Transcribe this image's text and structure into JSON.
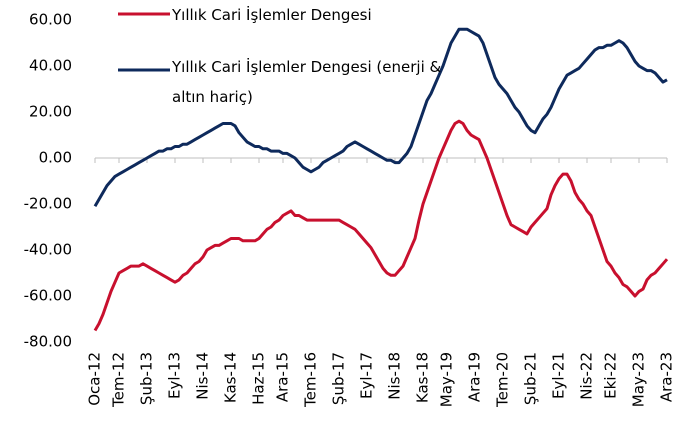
{
  "chart_data": {
    "type": "line",
    "categories": [
      "Oca-12",
      null,
      null,
      null,
      null,
      null,
      "Tem-12",
      null,
      null,
      null,
      null,
      null,
      null,
      "Şub-13",
      null,
      null,
      null,
      null,
      null,
      null,
      "Eyl-13",
      null,
      null,
      null,
      null,
      null,
      null,
      "Nis-14",
      null,
      null,
      null,
      null,
      null,
      null,
      "Kas-14",
      null,
      null,
      null,
      null,
      null,
      null,
      "Haz-15",
      null,
      null,
      null,
      null,
      null,
      "Ara-15",
      null,
      null,
      null,
      null,
      null,
      null,
      "Tem-16",
      null,
      null,
      null,
      null,
      null,
      null,
      "Şub-17",
      null,
      null,
      null,
      null,
      null,
      null,
      "Eyl-17",
      null,
      null,
      null,
      null,
      null,
      null,
      "Nis-18",
      null,
      null,
      null,
      null,
      null,
      null,
      "Kas-18",
      null,
      null,
      null,
      null,
      null,
      "May-19",
      null,
      null,
      null,
      null,
      null,
      null,
      "Ara-19",
      null,
      null,
      null,
      null,
      null,
      null,
      "Tem-20",
      null,
      null,
      null,
      null,
      null,
      null,
      "Şub-21",
      null,
      null,
      null,
      null,
      null,
      null,
      "Eyl-21",
      null,
      null,
      null,
      null,
      null,
      null,
      "Nis-22",
      null,
      null,
      null,
      null,
      null,
      "Eki-22",
      null,
      null,
      null,
      null,
      null,
      null,
      "May-23",
      null,
      null,
      null,
      null,
      null,
      null,
      "Ara-23"
    ],
    "series": [
      {
        "name": "Yıllık Cari İşlemler Dengesi",
        "color": "#c8102e",
        "values": [
          -75,
          -72,
          -68,
          -63,
          -58,
          -54,
          -50,
          -49,
          -48,
          -47,
          -47,
          -47,
          -46,
          -47,
          -48,
          -49,
          -50,
          -51,
          -52,
          -53,
          -54,
          -53,
          -51,
          -50,
          -48,
          -46,
          -45,
          -43,
          -40,
          -39,
          -38,
          -38,
          -37,
          -36,
          -35,
          -35,
          -35,
          -36,
          -36,
          -36,
          -36,
          -35,
          -33,
          -31,
          -30,
          -28,
          -27,
          -25,
          -24,
          -23,
          -25,
          -25,
          -26,
          -27,
          -27,
          -27,
          -27,
          -27,
          -27,
          -27,
          -27,
          -27,
          -28,
          -29,
          -30,
          -31,
          -33,
          -35,
          -37,
          -39,
          -42,
          -45,
          -48,
          -50,
          -51,
          -51,
          -49,
          -47,
          -43,
          -39,
          -35,
          -27,
          -20,
          -15,
          -10,
          -5,
          0,
          4,
          8,
          12,
          15,
          16,
          15,
          12,
          10,
          9,
          8,
          4,
          0,
          -5,
          -10,
          -15,
          -20,
          -25,
          -29,
          -30,
          -31,
          -32,
          -33,
          -30,
          -28,
          -26,
          -24,
          -22,
          -16,
          -12,
          -9,
          -7,
          -7,
          -10,
          -15,
          -18,
          -20,
          -23,
          -25,
          -30,
          -35,
          -40,
          -45,
          -47,
          -50,
          -52,
          -55,
          -56,
          -58,
          -60,
          -58,
          -57,
          -53,
          -51,
          -50,
          -48,
          -46,
          -44
        ]
      },
      {
        "name": "Yıllık Cari İşlemler Dengesi (enerji & altın hariç)",
        "color": "#0e2a5c",
        "values": [
          -21,
          -18,
          -15,
          -12,
          -10,
          -8,
          -7,
          -6,
          -5,
          -4,
          -3,
          -2,
          -1,
          0,
          1,
          2,
          3,
          3,
          4,
          4,
          5,
          5,
          6,
          6,
          7,
          8,
          9,
          10,
          11,
          12,
          13,
          14,
          15,
          15,
          15,
          14,
          11,
          9,
          7,
          6,
          5,
          5,
          4,
          4,
          3,
          3,
          3,
          2,
          2,
          1,
          0,
          -2,
          -4,
          -5,
          -6,
          -5,
          -4,
          -2,
          -1,
          0,
          1,
          2,
          3,
          5,
          6,
          7,
          6,
          5,
          4,
          3,
          2,
          1,
          0,
          -1,
          -1,
          -2,
          -2,
          0,
          2,
          5,
          10,
          15,
          20,
          25,
          28,
          32,
          36,
          40,
          45,
          50,
          53,
          56,
          56,
          56,
          55,
          54,
          53,
          50,
          45,
          40,
          35,
          32,
          30,
          28,
          25,
          22,
          20,
          17,
          14,
          12,
          11,
          14,
          17,
          19,
          22,
          26,
          30,
          33,
          36,
          37,
          38,
          39,
          41,
          43,
          45,
          47,
          48,
          48,
          49,
          49,
          50,
          51,
          50,
          48,
          45,
          42,
          40,
          39,
          38,
          38,
          37,
          35,
          33,
          34
        ]
      }
    ],
    "ylim": [
      -80,
      60
    ],
    "yticks": [
      {
        "value": -80,
        "label": "-80.00"
      },
      {
        "value": -60,
        "label": "-60.00"
      },
      {
        "value": -40,
        "label": "-40.00"
      },
      {
        "value": -20,
        "label": "-20.00"
      },
      {
        "value": 0,
        "label": "0.00"
      },
      {
        "value": 20,
        "label": "20.00"
      },
      {
        "value": 40,
        "label": "40.00"
      },
      {
        "value": 60,
        "label": "60.00"
      }
    ],
    "grid": false,
    "legend": "top-left"
  }
}
